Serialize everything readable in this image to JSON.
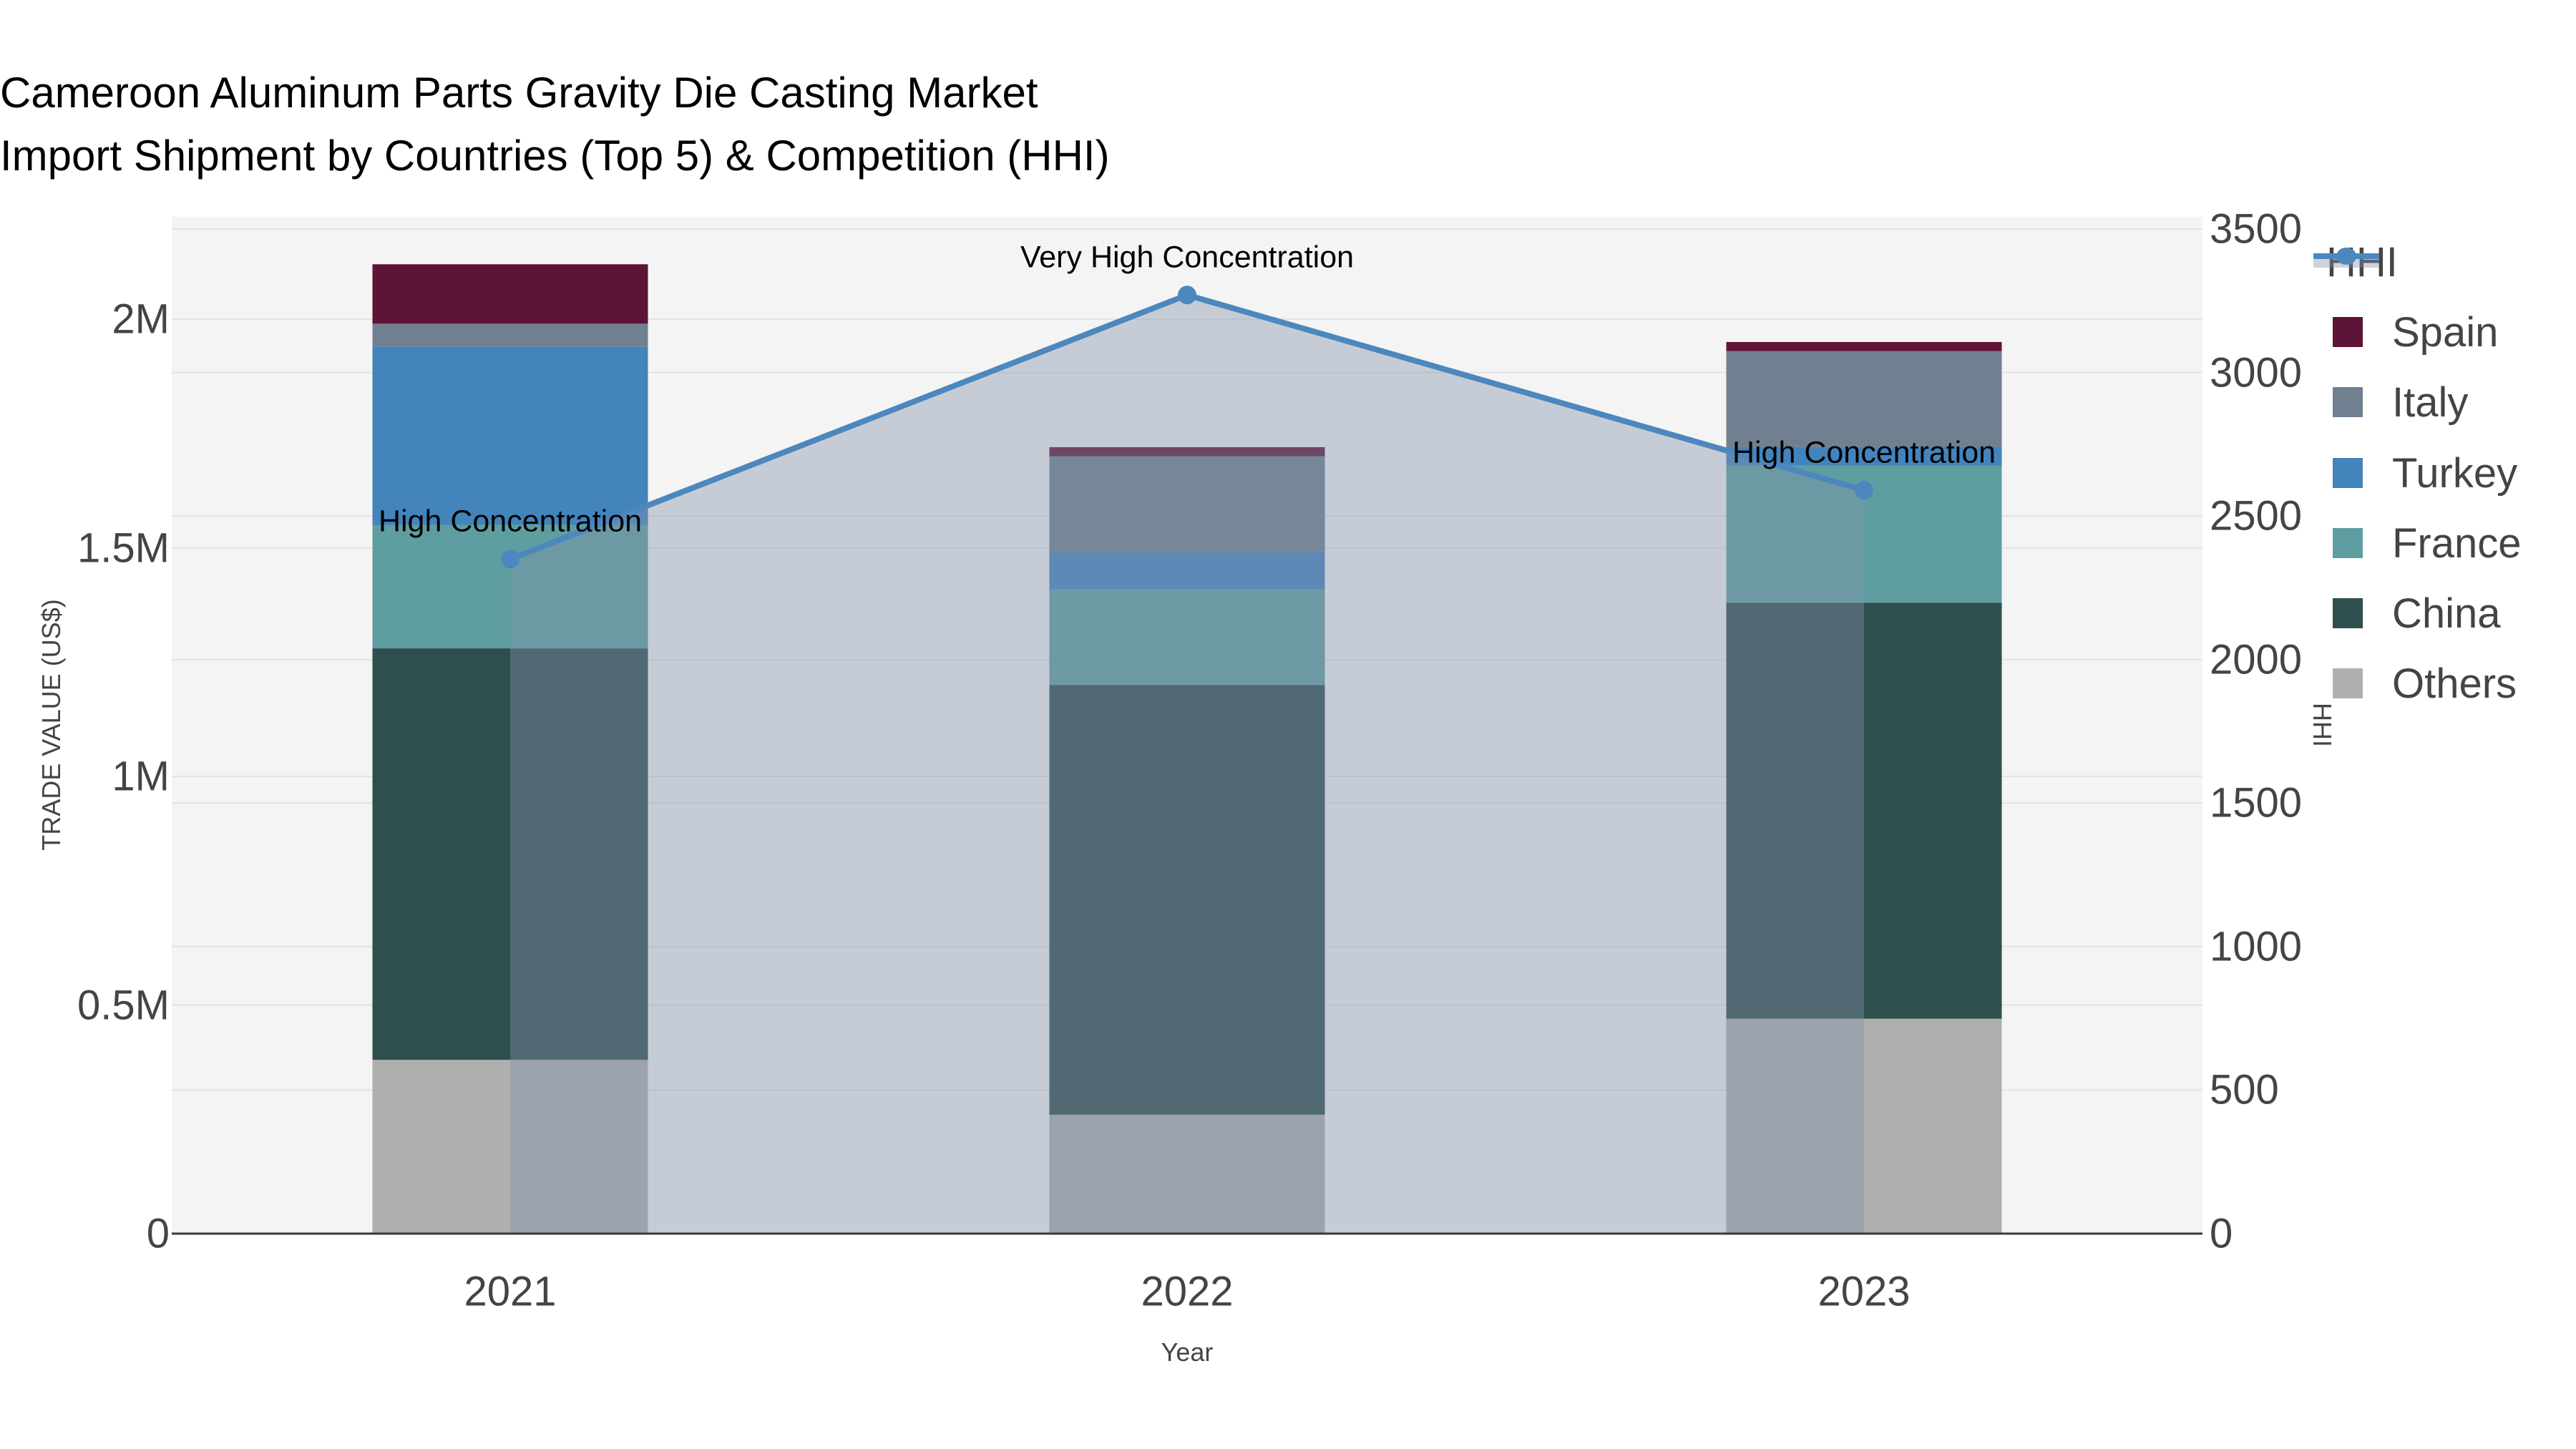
{
  "title": {
    "line1": "Cameroon Aluminum Parts Gravity Die Casting Market",
    "line2": "Import Shipment by Countries (Top 5) & Competition (HHI)"
  },
  "chart_data": {
    "type": "bar",
    "subtype": "stacked-bars-with-line-overlay-dual-axis",
    "categories": [
      "2021",
      "2022",
      "2023"
    ],
    "bar_value_unit": "million US$",
    "series": [
      {
        "name": "Spain",
        "color": "#5E1437",
        "values": [
          0.13,
          0.02,
          0.02
        ]
      },
      {
        "name": "Italy",
        "color": "#708090",
        "values": [
          0.05,
          0.21,
          0.21
        ]
      },
      {
        "name": "Turkey",
        "color": "#4384BC",
        "values": [
          0.39,
          0.08,
          0.04
        ]
      },
      {
        "name": "France",
        "color": "#5F9EA0",
        "values": [
          0.27,
          0.21,
          0.3
        ]
      },
      {
        "name": "China",
        "color": "#2F4F4F",
        "values": [
          0.9,
          0.94,
          0.91
        ]
      },
      {
        "name": "Others",
        "color": "#AFB0AE",
        "values": [
          0.38,
          0.26,
          0.47
        ]
      }
    ],
    "bar_totals_musd": [
      2.12,
      1.72,
      1.95
    ],
    "line_series": {
      "name": "HHI",
      "axis": "right",
      "color": "#4C87BD",
      "area_fill": "rgba(130,144,170,0.40)",
      "values": [
        2350,
        3270,
        2590
      ]
    },
    "annotations": [
      {
        "category": "2021",
        "text": "High Concentration"
      },
      {
        "category": "2022",
        "text": "Very High Concentration"
      },
      {
        "category": "2023",
        "text": "High Concentration"
      }
    ],
    "xlabel": "Year",
    "ylabel": "TRADE VALUE (US$)",
    "y2label": "HHI",
    "yticks": {
      "values": [
        0,
        0.5,
        1,
        1.5,
        2
      ],
      "labels": [
        "0",
        "0.5M",
        "1M",
        "1.5M",
        "2M"
      ]
    },
    "y2ticks": {
      "values": [
        0,
        500,
        1000,
        1500,
        2000,
        2500,
        3000,
        3500
      ],
      "labels": [
        "0",
        "500",
        "1000",
        "1500",
        "2000",
        "2500",
        "3000",
        "3500"
      ]
    },
    "ylim": [
      0,
      2.22
    ],
    "y2lim": [
      0,
      3500
    ],
    "grid": true,
    "legend_position": "right",
    "legend": [
      "HHI",
      "Spain",
      "Italy",
      "Turkey",
      "France",
      "China",
      "Others"
    ],
    "colors": {
      "plot_background": "#f4f4f4",
      "page_background": "#ffffff",
      "gridline": "#e3e3e3",
      "axis_line": "#3a3a3a",
      "text": "#444444",
      "annotation_text": "#000000"
    }
  }
}
